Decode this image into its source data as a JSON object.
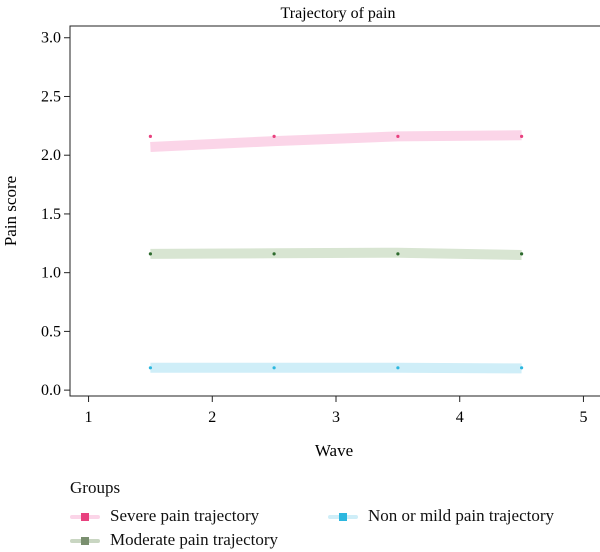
{
  "chart_data": {
    "type": "line",
    "title": "Trajectory of pain",
    "xlabel": "Wave",
    "ylabel": "Pain score",
    "xlim": [
      0.85,
      5.15
    ],
    "ylim": [
      -0.05,
      3.1
    ],
    "x_ticks": [
      "1",
      "2",
      "3",
      "4",
      "5"
    ],
    "y_ticks": [
      "0.0",
      "0.5",
      "1.0",
      "1.5",
      "2.0",
      "2.5",
      "3.0"
    ],
    "x": [
      1.5,
      2.5,
      3.5,
      4.5
    ],
    "series": [
      {
        "name": "Severe pain trajectory",
        "points": [
          2.16,
          2.16,
          2.16,
          2.16
        ],
        "fit": [
          2.07,
          2.12,
          2.16,
          2.17
        ],
        "band_color": "#fbd5e8",
        "point_color": "#e8417e"
      },
      {
        "name": "Moderate pain trajectory",
        "points": [
          1.16,
          1.16,
          1.16,
          1.16
        ],
        "fit": [
          1.16,
          1.165,
          1.17,
          1.15
        ],
        "band_color": "#d8e5d2",
        "point_color": "#2e6b2e"
      },
      {
        "name": "Non or mild pain trajectory",
        "points": [
          0.19,
          0.19,
          0.19,
          0.19
        ],
        "fit": [
          0.19,
          0.19,
          0.19,
          0.185
        ],
        "band_color": "#cfeef8",
        "point_color": "#2cb7df"
      }
    ],
    "grid": false,
    "legend_position": "bottom"
  },
  "legend": {
    "title": "Groups",
    "items": [
      {
        "label": "Severe pain trajectory",
        "color": "#e8417e",
        "band": "#fbd5e8"
      },
      {
        "label": "Non or mild pain trajectory",
        "color": "#2cb7df",
        "band": "#cfeef8"
      },
      {
        "label": "Moderate pain trajectory",
        "color": "#7a8f6f",
        "band": "#c9d6c2"
      }
    ]
  }
}
